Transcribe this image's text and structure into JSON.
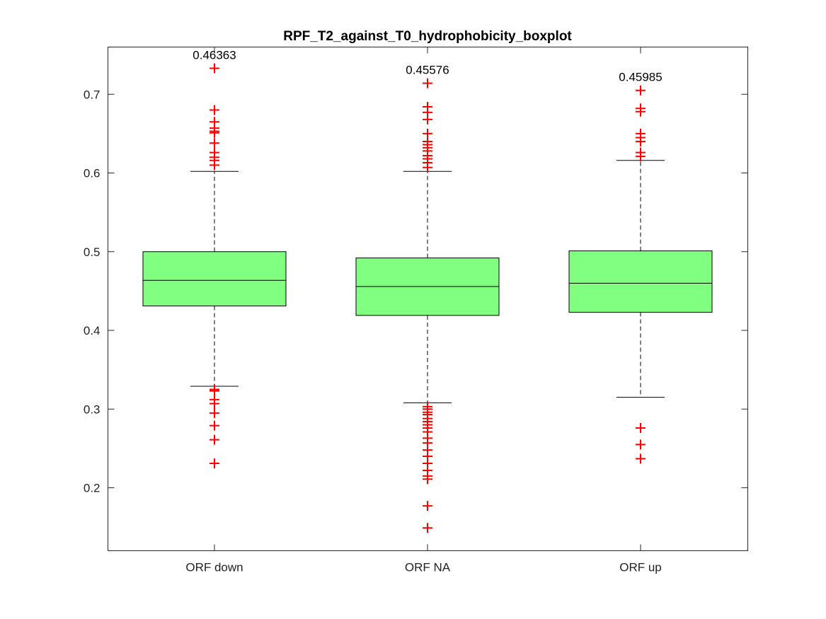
{
  "chart_data": {
    "type": "boxplot",
    "title": "RPF_T2_against_T0_hydrophobicity_boxplot",
    "xlabel": "",
    "ylabel": "",
    "ylim": [
      0.12,
      0.76
    ],
    "yticks": [
      0.2,
      0.3,
      0.4,
      0.5,
      0.6,
      0.7
    ],
    "ytick_labels": [
      "0.2",
      "0.3",
      "0.4",
      "0.5",
      "0.6",
      "0.7"
    ],
    "grid": false,
    "box_color": "#80ff80",
    "outlier_color": "#ff0000",
    "categories": [
      "ORF down",
      "ORF NA",
      "ORF up"
    ],
    "boxes": [
      {
        "category": "ORF down",
        "median": 0.46363,
        "median_label": "0.46363",
        "q1": 0.431,
        "q3": 0.5,
        "whisker_low": 0.329,
        "whisker_high": 0.602,
        "outliers": [
          0.733,
          0.68,
          0.665,
          0.657,
          0.653,
          0.651,
          0.638,
          0.626,
          0.62,
          0.616,
          0.61,
          0.325,
          0.323,
          0.312,
          0.307,
          0.295,
          0.279,
          0.261,
          0.231
        ]
      },
      {
        "category": "ORF NA",
        "median": 0.45576,
        "median_label": "0.45576",
        "q1": 0.419,
        "q3": 0.492,
        "whisker_low": 0.308,
        "whisker_high": 0.602,
        "outliers": [
          0.714,
          0.684,
          0.677,
          0.668,
          0.65,
          0.64,
          0.636,
          0.632,
          0.628,
          0.622,
          0.618,
          0.613,
          0.607,
          0.303,
          0.3,
          0.296,
          0.293,
          0.288,
          0.284,
          0.28,
          0.276,
          0.271,
          0.263,
          0.257,
          0.248,
          0.24,
          0.231,
          0.222,
          0.215,
          0.211,
          0.177,
          0.149
        ]
      },
      {
        "category": "ORF up",
        "median": 0.45985,
        "median_label": "0.45985",
        "q1": 0.423,
        "q3": 0.501,
        "whisker_low": 0.315,
        "whisker_high": 0.616,
        "outliers": [
          0.705,
          0.682,
          0.678,
          0.65,
          0.645,
          0.64,
          0.626,
          0.621,
          0.276,
          0.255,
          0.237
        ]
      }
    ]
  }
}
